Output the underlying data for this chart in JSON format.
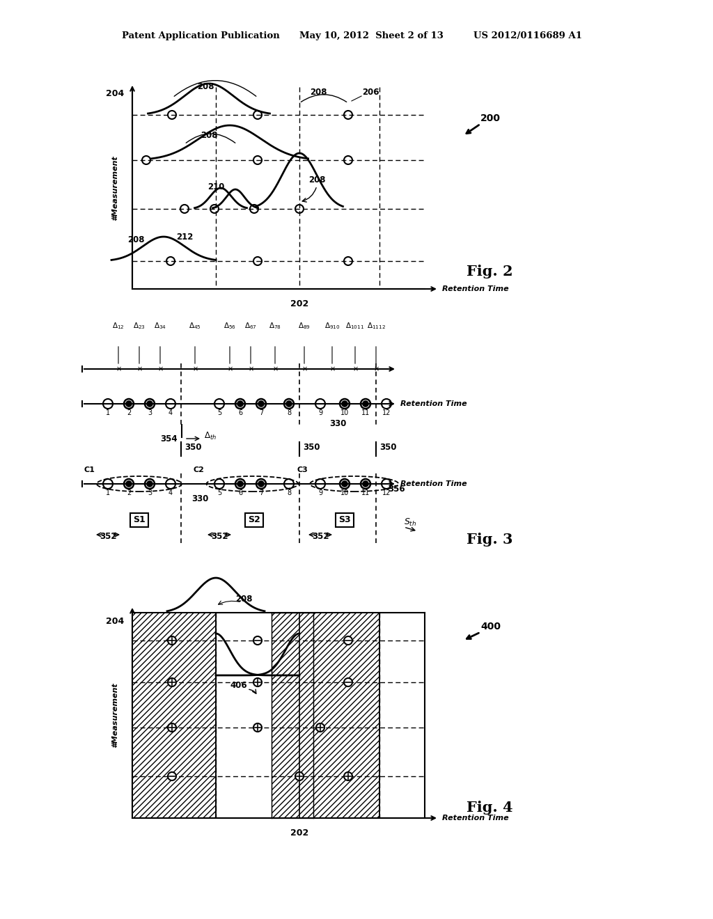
{
  "bg_color": "#ffffff",
  "text_color": "#000000",
  "header_left": "Patent Application Publication",
  "header_mid": "May 10, 2012  Sheet 2 of 13",
  "header_right": "US 2012/0116689 A1",
  "fig2_label": "Fig. 2",
  "fig3_label": "Fig. 3",
  "fig4_label": "Fig. 4"
}
